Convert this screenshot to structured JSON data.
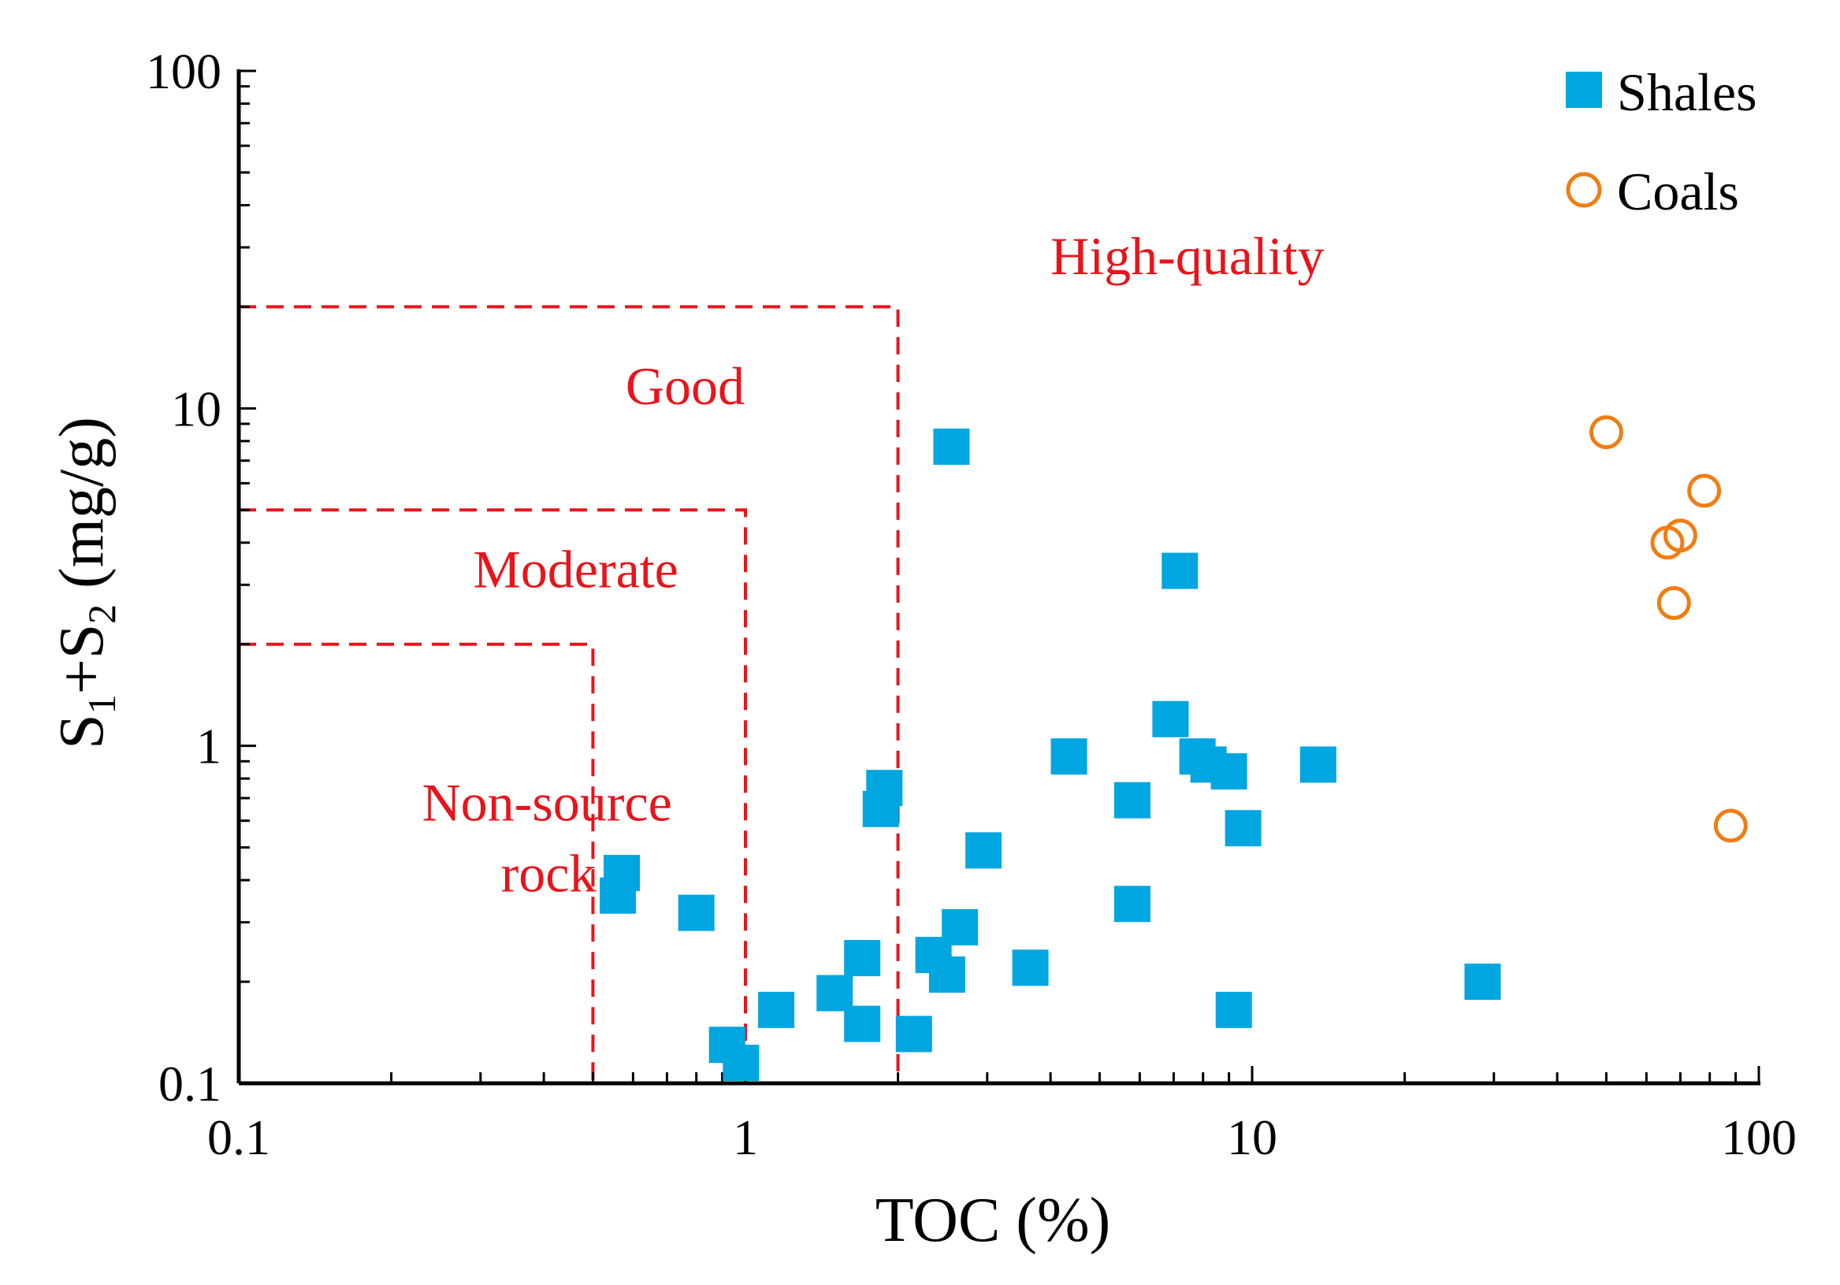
{
  "chart_data": {
    "type": "scatter",
    "title": "",
    "xlabel": "TOC (%)",
    "ylabel": {
      "prefix": "S",
      "sub1": "1",
      "plus": "+S",
      "sub2": "2",
      "suffix": " (mg/g)"
    },
    "x_scale": "log",
    "y_scale": "log",
    "xlim": [
      0.1,
      100
    ],
    "ylim": [
      0.1,
      100
    ],
    "x_ticks": [
      {
        "value": 0.1,
        "label": "0.1"
      },
      {
        "value": 1,
        "label": "1"
      },
      {
        "value": 10,
        "label": "10"
      },
      {
        "value": 100,
        "label": "100"
      }
    ],
    "y_ticks": [
      {
        "value": 0.1,
        "label": "0.1"
      },
      {
        "value": 1,
        "label": "1"
      },
      {
        "value": 10,
        "label": "10"
      },
      {
        "value": 100,
        "label": "100"
      }
    ],
    "grid": false,
    "legend_position": "top-right",
    "zone_color": "#e8141b",
    "zones": [
      {
        "label": "High-quality",
        "toc_max": null,
        "s_max": null,
        "label_x": 4.0,
        "label_y": 25
      },
      {
        "label": "Good",
        "toc_max": 2,
        "s_max": 20,
        "label_x": 0.58,
        "label_y": 10.3
      },
      {
        "label": "Moderate",
        "toc_max": 1,
        "s_max": 5,
        "label_x": 0.29,
        "label_y": 2.95
      },
      {
        "label": "Non-source",
        "label2": "rock",
        "toc_max": 0.5,
        "s_max": 2,
        "label_x": 0.23,
        "label_y": 0.6
      }
    ],
    "series": [
      {
        "name": "Shales",
        "marker": "square",
        "color": "#00a6e0",
        "points": [
          [
            0.56,
            0.36
          ],
          [
            0.57,
            0.42
          ],
          [
            0.8,
            0.32
          ],
          [
            0.92,
            0.13
          ],
          [
            0.98,
            0.115
          ],
          [
            1.15,
            0.165
          ],
          [
            1.5,
            0.185
          ],
          [
            1.7,
            0.15
          ],
          [
            1.7,
            0.235
          ],
          [
            1.85,
            0.65
          ],
          [
            1.88,
            0.75
          ],
          [
            2.15,
            0.14
          ],
          [
            2.35,
            0.24
          ],
          [
            2.5,
            0.21
          ],
          [
            2.65,
            0.29
          ],
          [
            2.55,
            7.7
          ],
          [
            2.95,
            0.49
          ],
          [
            3.65,
            0.22
          ],
          [
            4.35,
            0.93
          ],
          [
            5.8,
            0.69
          ],
          [
            5.8,
            0.34
          ],
          [
            6.9,
            1.2
          ],
          [
            7.2,
            3.3
          ],
          [
            7.8,
            0.93
          ],
          [
            8.2,
            0.88
          ],
          [
            9.0,
            0.84
          ],
          [
            9.2,
            0.165
          ],
          [
            9.6,
            0.57
          ],
          [
            13.5,
            0.88
          ],
          [
            28.5,
            0.2
          ]
        ]
      },
      {
        "name": "Coals",
        "marker": "circle",
        "color": "#f07d14",
        "points": [
          [
            50,
            8.5
          ],
          [
            66,
            4.0
          ],
          [
            68,
            2.65
          ],
          [
            70,
            4.2
          ],
          [
            78,
            5.7
          ],
          [
            88,
            0.58
          ]
        ]
      }
    ]
  }
}
